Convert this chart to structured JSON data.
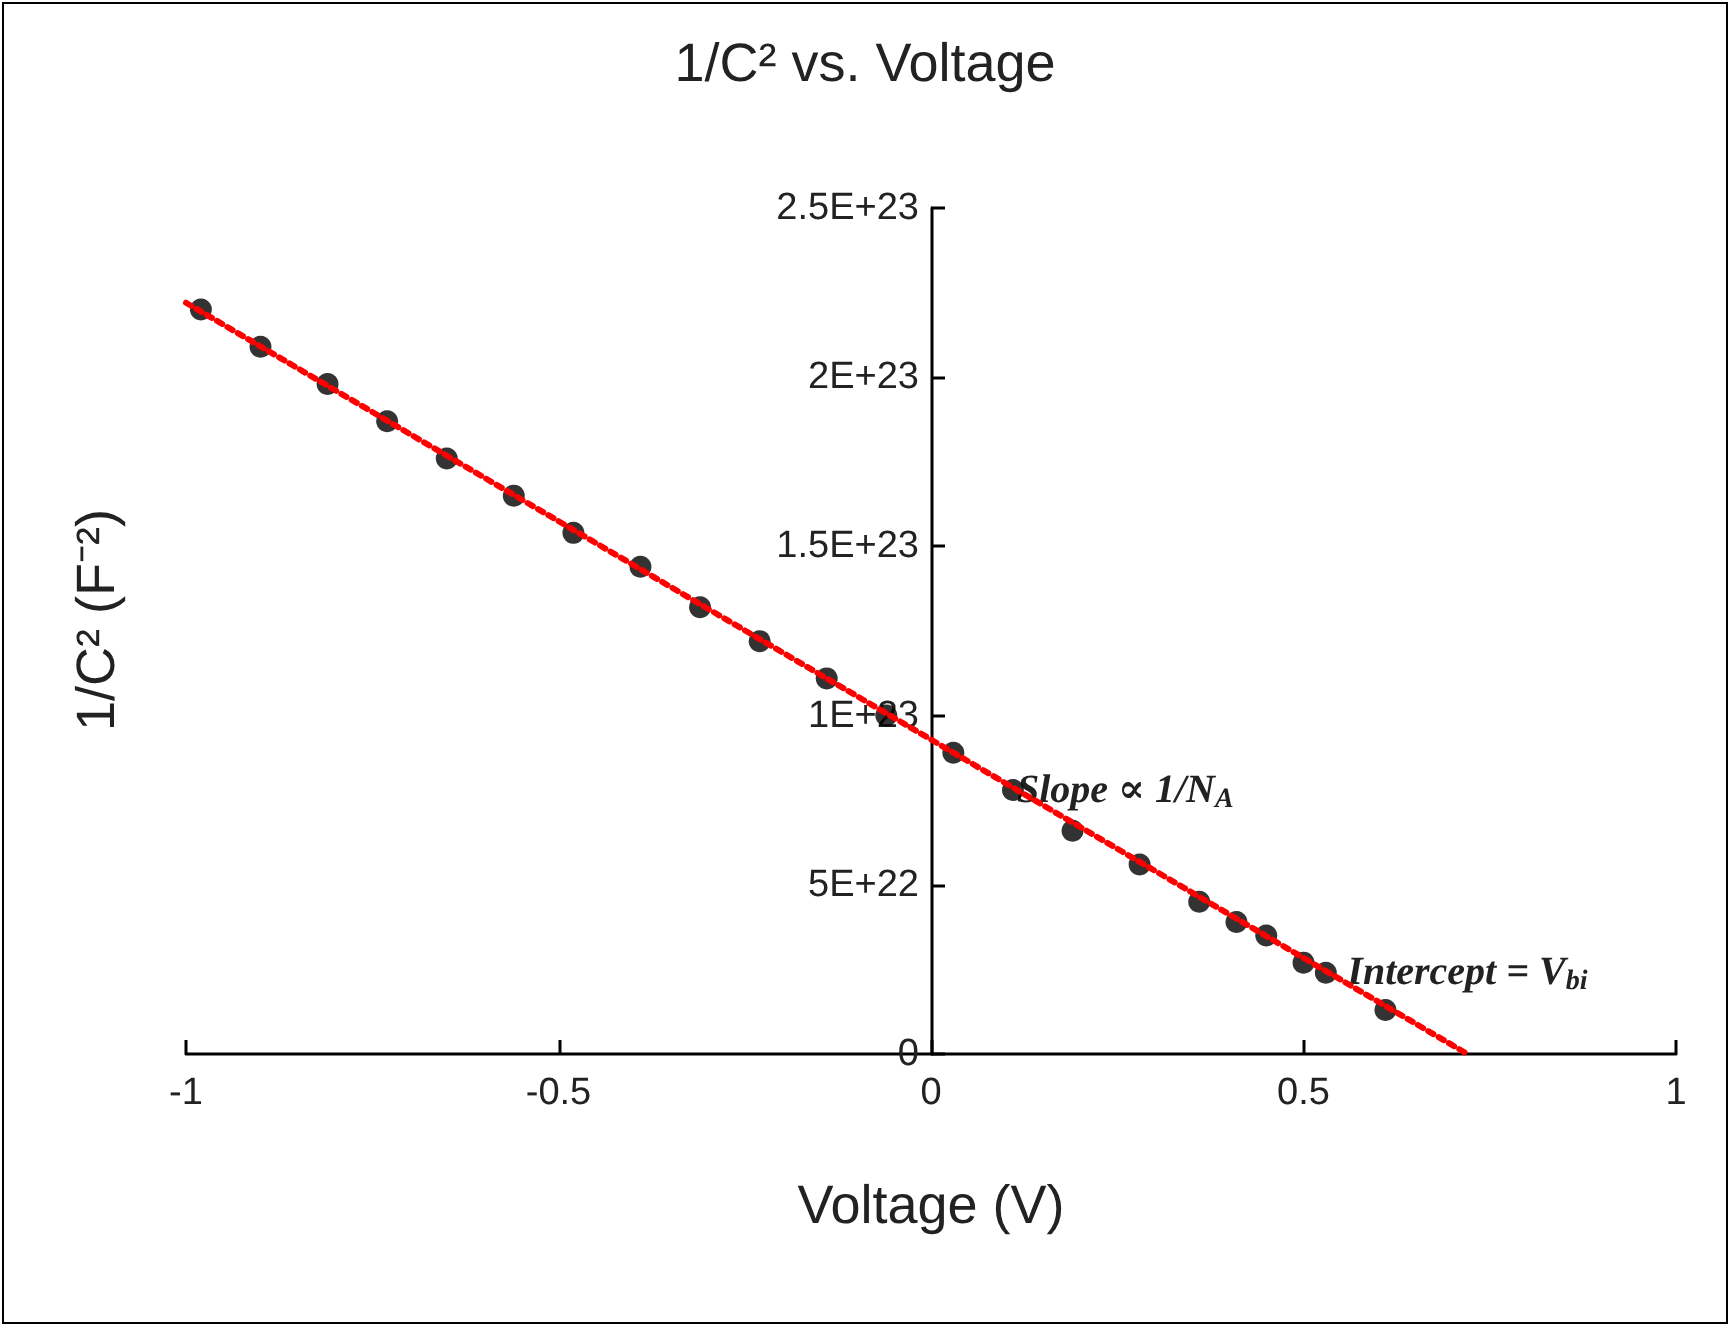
{
  "chart_data": {
    "type": "scatter",
    "title": "1/C² vs. Voltage",
    "xlabel": "Voltage (V)",
    "ylabel": "1/C² (F⁻²)",
    "annotations": [
      {
        "text": "Slope ∝ 1/N$_{A}$",
        "x": 0.11,
        "y": 7.8e+22
      },
      {
        "text": "Intercept = V$_{bi}$",
        "x": 0.72,
        "y": 0
      }
    ],
    "series": [
      {
        "color": "#000000",
        "marker": "circle",
        "x": [
          -0.98,
          -0.9,
          -0.81,
          -0.73,
          -0.65,
          -0.56,
          -0.48,
          -0.39,
          -0.31,
          -0.23,
          -0.14,
          -0.06,
          0.03,
          0.11,
          0.19,
          0.28,
          0.36,
          0.41,
          0.45,
          0.5,
          0.53,
          0.61
        ],
        "values": [
          2.2e+23,
          2.09e+23,
          1.98e+23,
          1.87e+23,
          1.76e+23,
          1.65e+23,
          1.54e+23,
          1.44e+23,
          1.32e+23,
          1.22e+23,
          1.11e+23,
          1e+23,
          8.9e+22,
          7.8e+22,
          6.6e+22,
          5.6e+22,
          4.5e+22,
          3.9e+22,
          3.5e+22,
          2.7e+22,
          2.4e+22,
          1.3e+22
        ]
      },
      {
        "type": "line",
        "color": "#ff0000",
        "marker": "none",
        "line_style": "dotted",
        "x": [
          -1,
          0.72
        ],
        "values": [
          2.22e+23,
          0
        ]
      }
    ],
    "xlim": [
      -1,
      1
    ],
    "xticks": [
      -1,
      -0.5,
      0,
      0.5,
      1
    ],
    "ylim": [
      0,
      2.5e+23
    ],
    "yticks": [
      0,
      {
        "value": 5e+22,
        "label": "5E+22"
      },
      {
        "value": 1e+23,
        "label": "1E+23"
      },
      {
        "value": 1.5e+23,
        "label": "1.5E+23"
      },
      {
        "value": 2e+23,
        "label": "2E+23"
      },
      {
        "value": 2.5e+23,
        "label": "2.5E+23"
      }
    ],
    "grid": false
  }
}
